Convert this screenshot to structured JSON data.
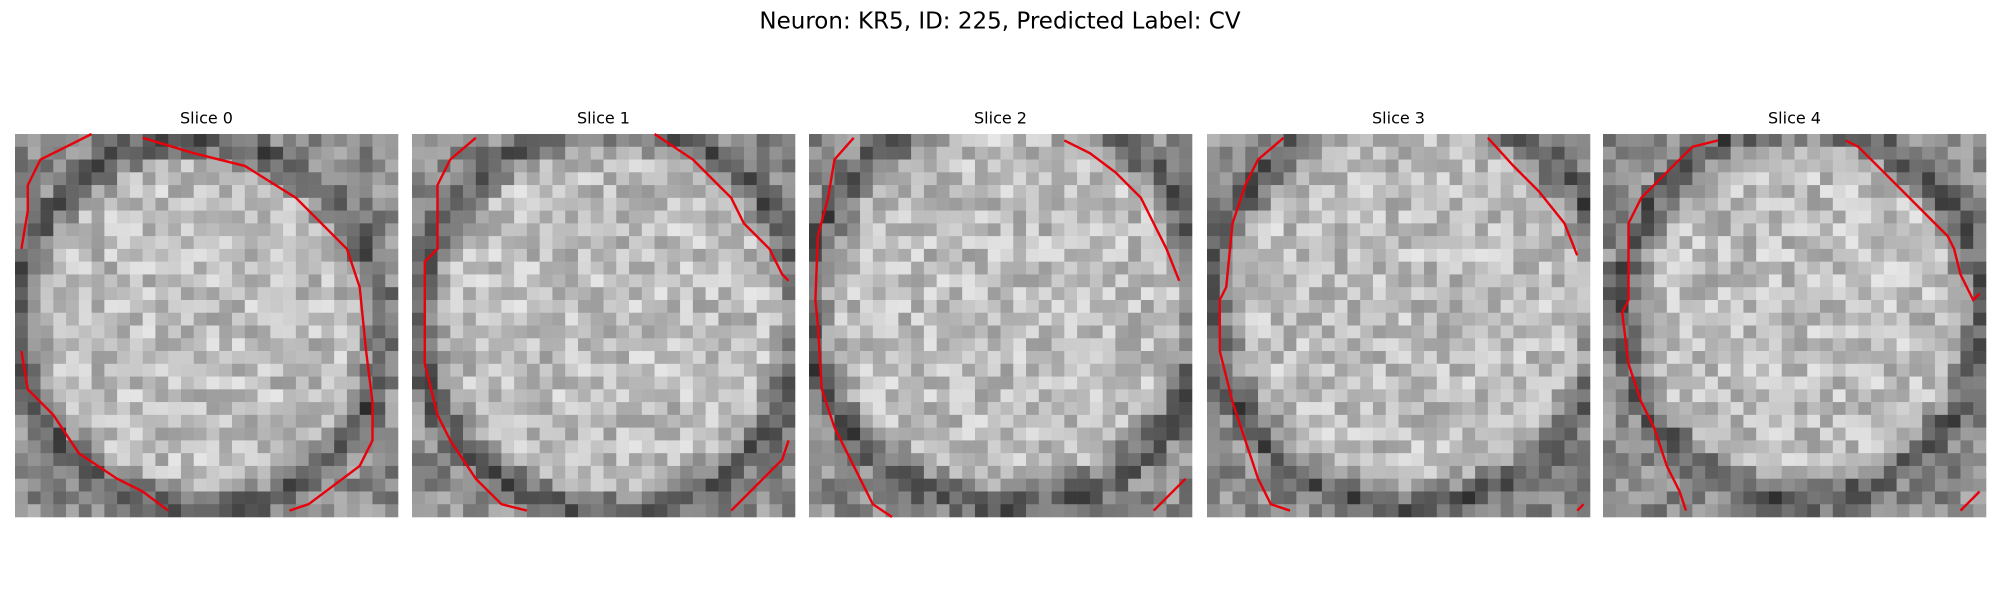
{
  "header": {
    "title": "Neuron: KR5, ID: 225, Predicted Label: CV"
  },
  "panels": [
    {
      "title": "Slice 0"
    },
    {
      "title": "Slice 1"
    },
    {
      "title": "Slice 2"
    },
    {
      "title": "Slice 3"
    },
    {
      "title": "Slice 4"
    }
  ]
}
